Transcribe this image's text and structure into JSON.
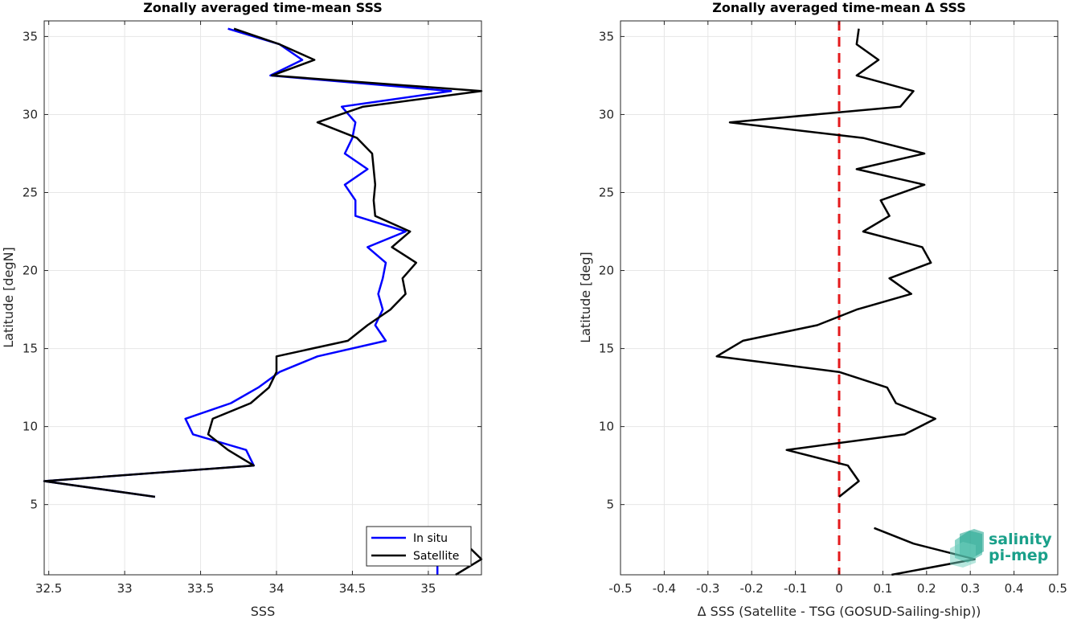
{
  "chart_data": [
    {
      "type": "line",
      "title": "Zonally averaged time-mean SSS",
      "xlabel": "SSS",
      "ylabel": "Latitude [degN]",
      "xlim": [
        32.47,
        35.35
      ],
      "ylim": [
        0.5,
        36
      ],
      "xticks": [
        "32.5",
        "33",
        "33.5",
        "34",
        "34.5",
        "35"
      ],
      "xtick_values": [
        32.5,
        33,
        33.5,
        34,
        34.5,
        35
      ],
      "yticks": [
        "5",
        "10",
        "15",
        "20",
        "25",
        "30",
        "35"
      ],
      "ytick_values": [
        5,
        10,
        15,
        20,
        25,
        30,
        35
      ],
      "grid": true,
      "legend_location": "bottom-right",
      "legend": [
        "In situ",
        "Satellite"
      ],
      "series": [
        {
          "name": "In situ",
          "color": "#0000ff",
          "segments": [
            [
              [
                33.2,
                5.5
              ],
              [
                32.47,
                6.5
              ],
              [
                33.85,
                7.5
              ],
              [
                33.8,
                8.5
              ],
              [
                33.45,
                9.5
              ],
              [
                33.4,
                10.5
              ],
              [
                33.7,
                11.5
              ],
              [
                33.88,
                12.5
              ],
              [
                34.02,
                13.5
              ],
              [
                34.27,
                14.5
              ],
              [
                34.72,
                15.5
              ],
              [
                34.65,
                16.5
              ],
              [
                34.7,
                17.5
              ],
              [
                34.67,
                18.5
              ],
              [
                34.7,
                19.5
              ],
              [
                34.72,
                20.5
              ],
              [
                34.6,
                21.5
              ],
              [
                34.85,
                22.5
              ],
              [
                34.52,
                23.5
              ],
              [
                34.52,
                24.5
              ],
              [
                34.45,
                25.5
              ],
              [
                34.6,
                26.5
              ],
              [
                34.45,
                27.5
              ],
              [
                34.5,
                28.5
              ],
              [
                34.52,
                29.5
              ],
              [
                34.43,
                30.5
              ],
              [
                35.15,
                31.5
              ],
              [
                33.96,
                32.5
              ],
              [
                34.17,
                33.5
              ],
              [
                34.02,
                34.5
              ],
              [
                33.68,
                35.5
              ]
            ],
            [
              [
                35.06,
                3.5
              ],
              [
                35.06,
                0.5
              ]
            ]
          ]
        },
        {
          "name": "Satellite",
          "color": "#000000",
          "segments": [
            [
              [
                33.2,
                5.5
              ],
              [
                32.47,
                6.5
              ],
              [
                33.85,
                7.5
              ],
              [
                33.68,
                8.5
              ],
              [
                33.55,
                9.5
              ],
              [
                33.58,
                10.5
              ],
              [
                33.83,
                11.5
              ],
              [
                33.95,
                12.5
              ],
              [
                34.0,
                13.5
              ],
              [
                34.0,
                14.5
              ],
              [
                34.47,
                15.5
              ],
              [
                34.6,
                16.5
              ],
              [
                34.75,
                17.5
              ],
              [
                34.85,
                18.5
              ],
              [
                34.83,
                19.5
              ],
              [
                34.92,
                20.5
              ],
              [
                34.76,
                21.5
              ],
              [
                34.88,
                22.5
              ],
              [
                34.65,
                23.5
              ],
              [
                34.64,
                24.5
              ],
              [
                34.65,
                25.5
              ],
              [
                34.64,
                26.5
              ],
              [
                34.63,
                27.5
              ],
              [
                34.53,
                28.5
              ],
              [
                34.27,
                29.5
              ],
              [
                34.57,
                30.5
              ],
              [
                35.35,
                31.5
              ],
              [
                33.97,
                32.5
              ],
              [
                34.25,
                33.5
              ],
              [
                34.02,
                34.5
              ],
              [
                33.72,
                35.5
              ]
            ],
            [
              [
                35.14,
                3.5
              ],
              [
                35.35,
                1.5
              ],
              [
                35.18,
                0.5
              ]
            ]
          ]
        }
      ]
    },
    {
      "type": "line",
      "title": "Zonally averaged time-mean Δ SSS",
      "xlabel": "Δ SSS (Satellite - TSG (GOSUD-Sailing-ship))",
      "ylabel": "Latitude [deg]",
      "xlim": [
        -0.5,
        0.5
      ],
      "ylim": [
        0.5,
        36
      ],
      "xticks": [
        "-0.5",
        "-0.4",
        "-0.3",
        "-0.2",
        "-0.1",
        "0",
        "0.1",
        "0.2",
        "0.3",
        "0.4",
        "0.5"
      ],
      "xtick_values": [
        -0.5,
        -0.4,
        -0.3,
        -0.2,
        -0.1,
        0,
        0.1,
        0.2,
        0.3,
        0.4,
        0.5
      ],
      "yticks": [
        "5",
        "10",
        "15",
        "20",
        "25",
        "30",
        "35"
      ],
      "ytick_values": [
        5,
        10,
        15,
        20,
        25,
        30,
        35
      ],
      "grid": true,
      "zero_line": {
        "x": 0,
        "color": "#e41a1c",
        "style": "dashed"
      },
      "series": [
        {
          "color": "#000000",
          "segments": [
            [
              [
                0.0,
                5.5
              ],
              [
                0.045,
                6.5
              ],
              [
                0.02,
                7.5
              ],
              [
                -0.12,
                8.5
              ],
              [
                0.15,
                9.5
              ],
              [
                0.22,
                10.5
              ],
              [
                0.13,
                11.5
              ],
              [
                0.11,
                12.5
              ],
              [
                0.0,
                13.5
              ],
              [
                -0.28,
                14.5
              ],
              [
                -0.22,
                15.5
              ],
              [
                -0.05,
                16.5
              ],
              [
                0.04,
                17.5
              ],
              [
                0.165,
                18.5
              ],
              [
                0.115,
                19.5
              ],
              [
                0.21,
                20.5
              ],
              [
                0.19,
                21.5
              ],
              [
                0.055,
                22.5
              ],
              [
                0.115,
                23.5
              ],
              [
                0.095,
                24.5
              ],
              [
                0.195,
                25.5
              ],
              [
                0.04,
                26.5
              ],
              [
                0.195,
                27.5
              ],
              [
                0.055,
                28.5
              ],
              [
                -0.25,
                29.5
              ],
              [
                0.14,
                30.5
              ],
              [
                0.17,
                31.5
              ],
              [
                0.04,
                32.5
              ],
              [
                0.09,
                33.5
              ],
              [
                0.04,
                34.5
              ],
              [
                0.045,
                35.5
              ]
            ],
            [
              [
                0.08,
                3.5
              ],
              [
                0.17,
                2.5
              ],
              [
                0.31,
                1.5
              ],
              [
                0.12,
                0.5
              ]
            ]
          ]
        }
      ]
    }
  ],
  "logo": {
    "line1": "salinity",
    "line2": "pi-mep"
  }
}
